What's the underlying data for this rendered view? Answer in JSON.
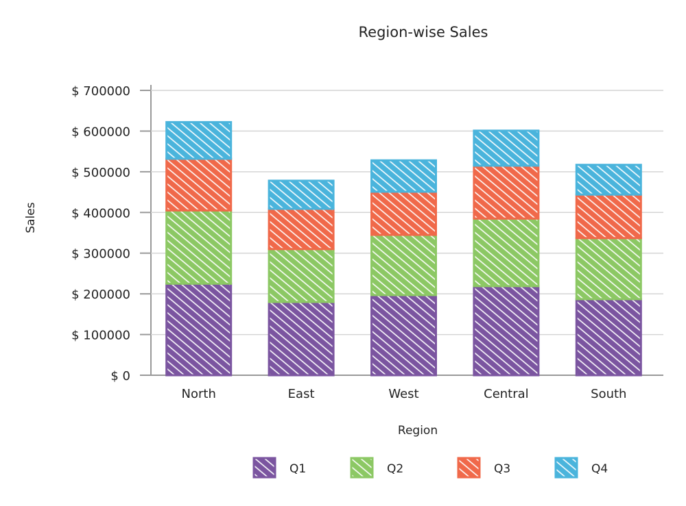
{
  "chart_data": {
    "type": "bar",
    "stacked": true,
    "title": "Region-wise Sales",
    "xlabel": "Region",
    "ylabel": "Sales",
    "ylim": [
      0,
      700000
    ],
    "yticks": [
      0,
      100000,
      200000,
      300000,
      400000,
      500000,
      600000,
      700000
    ],
    "ytick_prefix": "$ ",
    "grid": true,
    "legend_position": "bottom",
    "categories": [
      "North",
      "East",
      "West",
      "Central",
      "South"
    ],
    "series": [
      {
        "name": "Q1",
        "color": "#7b55a0",
        "values": [
          225000,
          180000,
          197000,
          219000,
          187000
        ]
      },
      {
        "name": "Q2",
        "color": "#8cc864",
        "values": [
          180000,
          130000,
          148000,
          166000,
          150000
        ]
      },
      {
        "name": "Q3",
        "color": "#f0694a",
        "values": [
          127000,
          99000,
          106000,
          130000,
          107000
        ]
      },
      {
        "name": "Q4",
        "color": "#4ab4dc",
        "values": [
          90000,
          69000,
          77000,
          86000,
          73000
        ]
      }
    ]
  }
}
